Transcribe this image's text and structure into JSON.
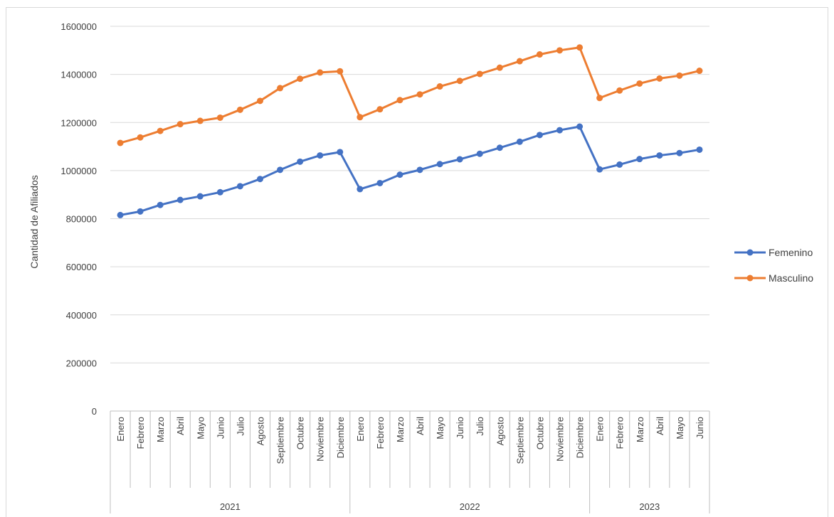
{
  "chart_data": {
    "type": "line",
    "title": "",
    "xlabel": "",
    "ylabel": "Cantidad de Afiliados",
    "ylim": [
      0,
      1600000
    ],
    "y_ticks": [
      "0",
      "200000",
      "400000",
      "600000",
      "800000",
      "1000000",
      "1200000",
      "1400000",
      "1600000"
    ],
    "grid": true,
    "legend": "right",
    "groups": [
      {
        "label": "2021",
        "count": 12
      },
      {
        "label": "2022",
        "count": 12
      },
      {
        "label": "2023",
        "count": 6
      }
    ],
    "categories": [
      "Enero",
      "Febrero",
      "Marzo",
      "Abril",
      "Mayo",
      "Junio",
      "Julio",
      "Agosto",
      "Septiembre",
      "Octubre",
      "Noviembre",
      "Diciembre",
      "Enero",
      "Febrero",
      "Marzo",
      "Abril",
      "Mayo",
      "Junio",
      "Julio",
      "Agosto",
      "Septiembre",
      "Octubre",
      "Noviembre",
      "Diciembre",
      "Enero",
      "Febrero",
      "Marzo",
      "Abril",
      "Mayo",
      "Junio"
    ],
    "series": [
      {
        "name": "Femenino",
        "color": "#4472c4",
        "values": [
          815000,
          830000,
          857000,
          878000,
          893000,
          910000,
          935000,
          965000,
          1003000,
          1037000,
          1063000,
          1077000,
          923000,
          948000,
          983000,
          1003000,
          1027000,
          1047000,
          1070000,
          1095000,
          1120000,
          1148000,
          1168000,
          1183000,
          1005000,
          1025000,
          1048000,
          1063000,
          1073000,
          1087000
        ]
      },
      {
        "name": "Masculino",
        "color": "#ed7d31",
        "values": [
          1115000,
          1138000,
          1165000,
          1193000,
          1207000,
          1220000,
          1253000,
          1290000,
          1343000,
          1382000,
          1408000,
          1413000,
          1222000,
          1255000,
          1293000,
          1317000,
          1350000,
          1373000,
          1402000,
          1428000,
          1455000,
          1483000,
          1500000,
          1512000,
          1302000,
          1333000,
          1362000,
          1383000,
          1395000,
          1415000
        ]
      }
    ]
  }
}
